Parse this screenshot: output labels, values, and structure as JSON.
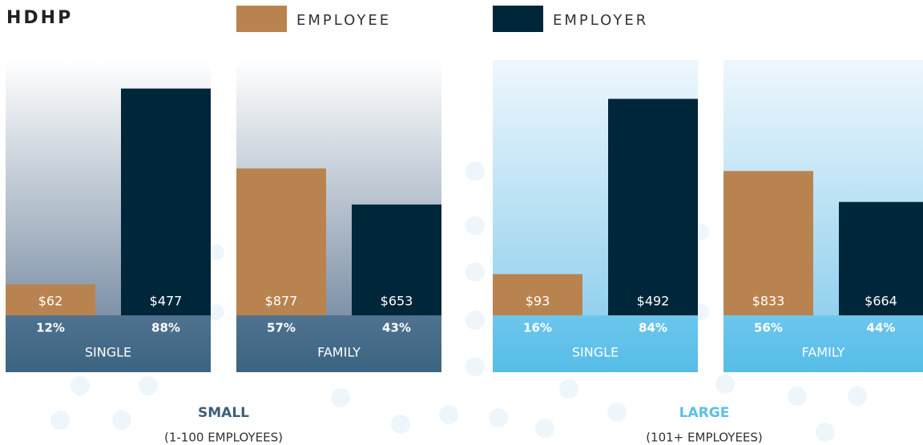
{
  "chart_data": {
    "type": "bar",
    "title": "HDHP",
    "categories": [
      "SINGLE",
      "FAMILY",
      "SINGLE",
      "FAMILY"
    ],
    "series": [
      {
        "name": "EMPLOYEE",
        "color": "#b9834f",
        "values": [
          12,
          57,
          16,
          56
        ],
        "value_labels": [
          "12%",
          "57%",
          "16%",
          "56%"
        ],
        "amounts": [
          62,
          877,
          93,
          833
        ],
        "amount_labels": [
          "$62",
          "$877",
          "$93",
          "$833"
        ]
      },
      {
        "name": "EMPLOYER",
        "color": "#00263a",
        "values": [
          88,
          43,
          84,
          44
        ],
        "value_labels": [
          "88%",
          "43%",
          "84%",
          "44%"
        ],
        "amounts": [
          477,
          653,
          492,
          664
        ],
        "amount_labels": [
          "$477",
          "$653",
          "$492",
          "$664"
        ]
      }
    ],
    "groups": [
      {
        "name": "SMALL",
        "subtitle": "(1-100 EMPLOYEES)",
        "color": "#3d5f7a"
      },
      {
        "name": "LARGE",
        "subtitle": "(101+ EMPLOYEES)",
        "color": "#5bbfe8"
      }
    ]
  }
}
